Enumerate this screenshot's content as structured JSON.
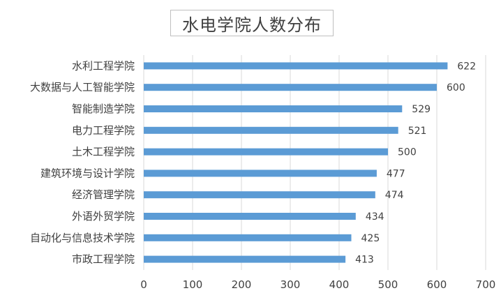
{
  "chart_data": {
    "type": "bar",
    "orientation": "horizontal",
    "title": "水电学院人数分布",
    "categories": [
      "水利工程学院",
      "大数据与人工智能学院",
      "智能制造学院",
      "电力工程学院",
      "土木工程学院",
      "建筑环境与设计学院",
      "经济管理学院",
      "外语外贸学院",
      "自动化与信息技术学院",
      "市政工程学院"
    ],
    "values": [
      622,
      600,
      529,
      521,
      500,
      477,
      474,
      434,
      425,
      413
    ],
    "xlim": [
      0,
      700
    ],
    "xticks": [
      0,
      100,
      200,
      300,
      400,
      500,
      600,
      700
    ],
    "grid": "vertical",
    "bar_color": "#5b9bd5",
    "legend": "none",
    "data_labels": true
  }
}
